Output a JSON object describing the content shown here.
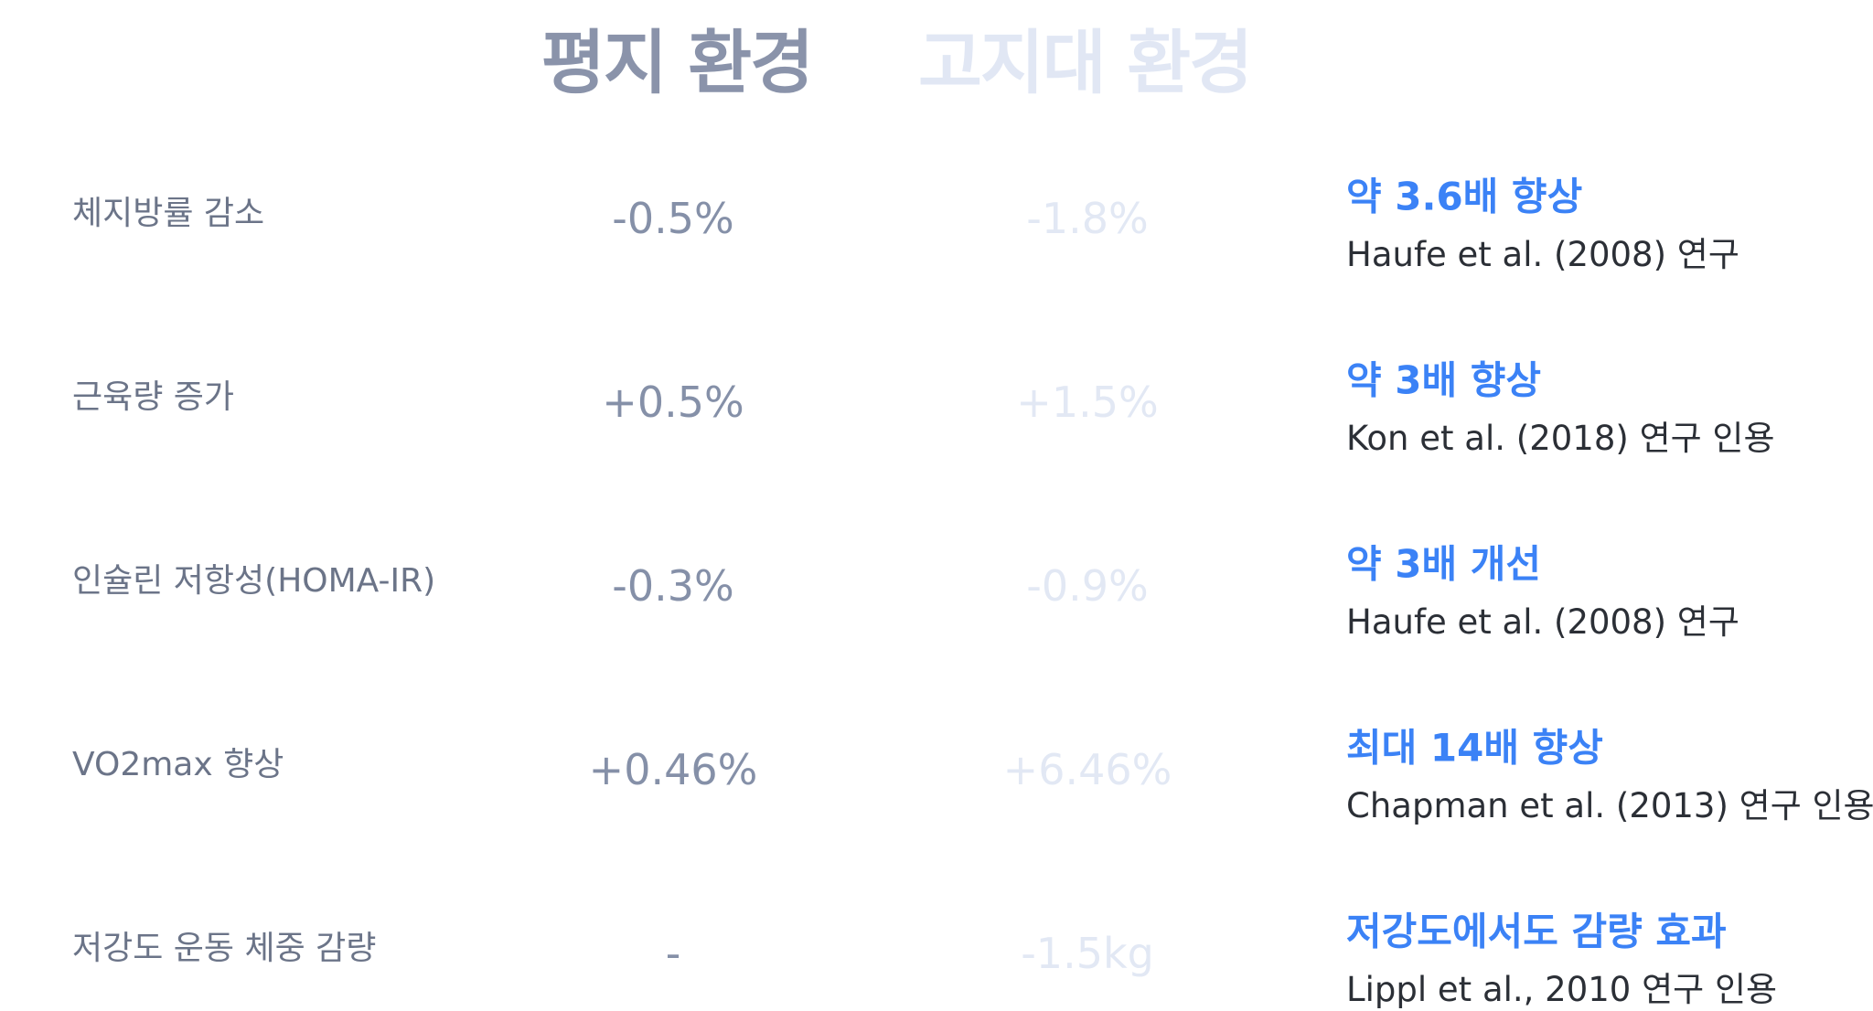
{
  "header": {
    "flat": "평지 환경",
    "altitude": "고지대 환경"
  },
  "table": {
    "rows": [
      {
        "label": "체지방률 감소",
        "flat": "-0.5%",
        "altitude": "-1.8%",
        "effect": "약 3.6배 향상",
        "source": "Haufe et al. (2008) 연구"
      },
      {
        "label": "근육량 증가",
        "flat": "+0.5%",
        "altitude": "+1.5%",
        "effect": "약 3배 향상",
        "source": "Kon et al. (2018) 연구 인용"
      },
      {
        "label": "인슐린 저항성(HOMA-IR)",
        "flat": "-0.3%",
        "altitude": "-0.9%",
        "effect": "약 3배 개선",
        "source": "Haufe et al. (2008) 연구"
      },
      {
        "label": "VO2max 향상",
        "flat": "+0.46%",
        "altitude": "+6.46%",
        "effect": "최대 14배 향상",
        "source": "Chapman et al. (2013) 연구 인용"
      },
      {
        "label": "저강도 운동 체중 감량",
        "flat": "-",
        "altitude": "-1.5kg",
        "effect": "저강도에서도 감량 효과",
        "source": "Lippl et al., 2010 연구 인용"
      }
    ]
  }
}
